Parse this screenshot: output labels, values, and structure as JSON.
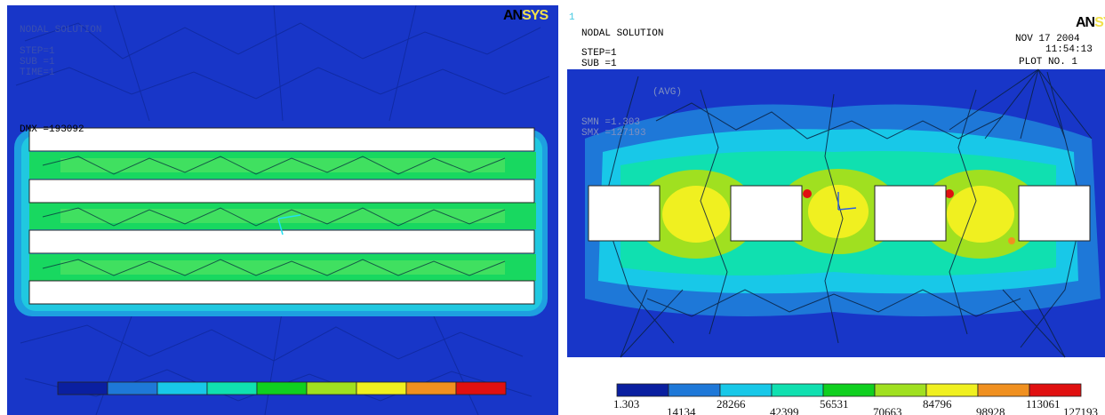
{
  "left_panel": {
    "logo_an": "AN",
    "logo_sys": "SYS",
    "header_lines": [
      "NODAL SOLUTION",
      "STEP=1",
      "SUB =1",
      "TIME=1"
    ],
    "dmx": "DMX =193092",
    "legend_colors": [
      "#0a1fa0",
      "#1e78d8",
      "#18c8e8",
      "#10e0b0",
      "#10d020",
      "#a0e020",
      "#f0f020",
      "#f09020",
      "#e01010"
    ]
  },
  "right_panel": {
    "index": "1",
    "logo_an": "AN",
    "logo_sys": "SYS",
    "title": "NODAL SOLUTION",
    "step": "STEP=1",
    "sub": "SUB =1",
    "avg": "(AVG)",
    "smn": "SMN =1.303",
    "smx": "SMX =127193",
    "date": "NOV 17 2004",
    "time": "11:54:13",
    "plot_no": "PLOT NO.   1",
    "legend_top": [
      "1.303",
      "28266",
      "56531",
      "84796",
      "113061"
    ],
    "legend_bottom": [
      "14134",
      "42399",
      "70663",
      "98928",
      "127193"
    ],
    "legend_colors": [
      "#0a1fa0",
      "#1e78d8",
      "#18c8e8",
      "#10e0b0",
      "#10d020",
      "#a0e020",
      "#f0f020",
      "#f09020",
      "#e01010"
    ]
  }
}
